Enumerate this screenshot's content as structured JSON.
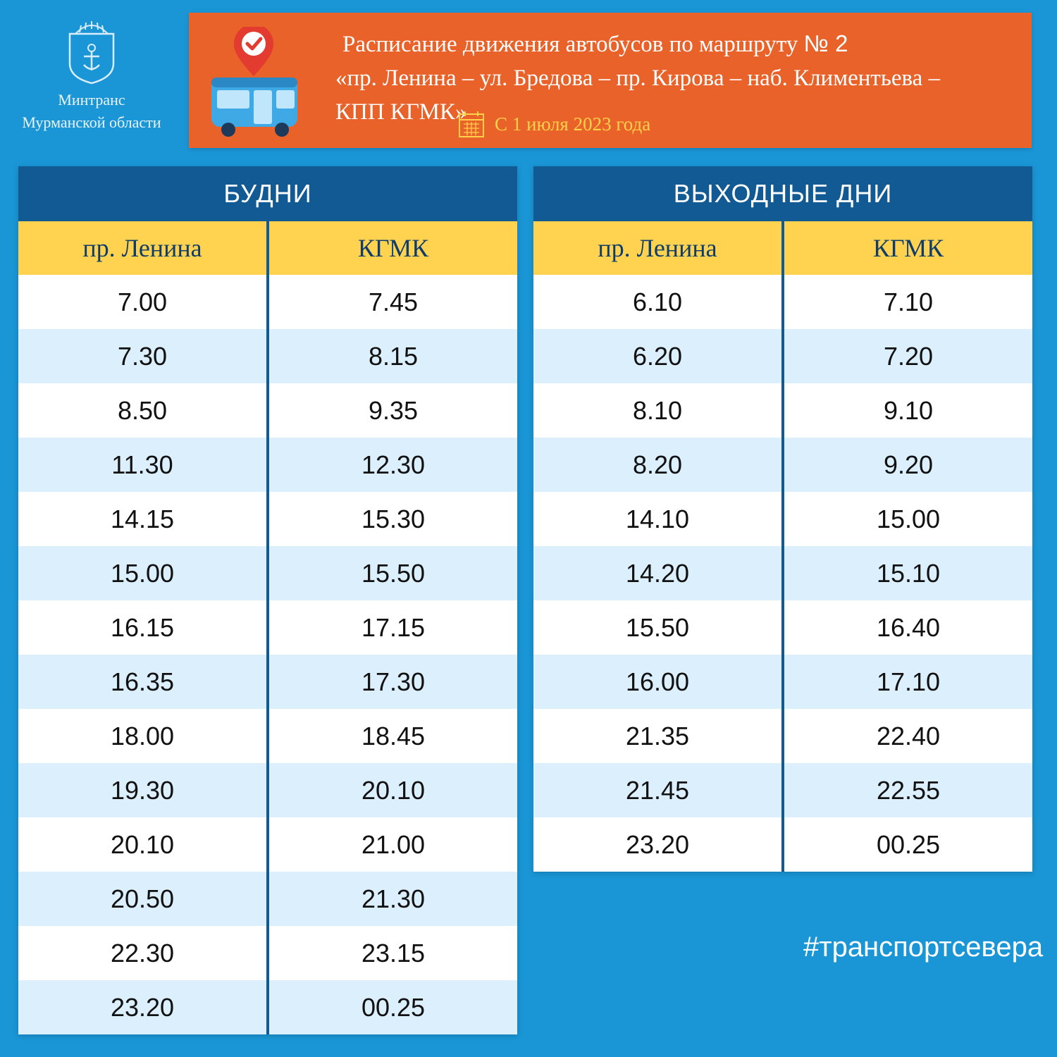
{
  "logo": {
    "line1": "Минтранс",
    "line2": "Мурманской области"
  },
  "header": {
    "title_line1": "Расписание движения автобусов по маршруту",
    "route_number": "№ 2",
    "title_line2": "«пр. Ленина – ул. Бредова – пр. Кирова – наб. Климентьева –",
    "title_line3": "КПП КГМК»",
    "date": "С 1 июля 2023 года",
    "background_color": "#e8622a",
    "date_color": "#ffd24a"
  },
  "weekdays": {
    "title": "БУДНИ",
    "col1": "пр. Ленина",
    "col2": "КГМК",
    "rows": [
      [
        "7.00",
        "7.45"
      ],
      [
        "7.30",
        "8.15"
      ],
      [
        "8.50",
        "9.35"
      ],
      [
        "11.30",
        "12.30"
      ],
      [
        "14.15",
        "15.30"
      ],
      [
        "15.00",
        "15.50"
      ],
      [
        "16.15",
        "17.15"
      ],
      [
        "16.35",
        "17.30"
      ],
      [
        "18.00",
        "18.45"
      ],
      [
        "19.30",
        "20.10"
      ],
      [
        "20.10",
        "21.00"
      ],
      [
        "20.50",
        "21.30"
      ],
      [
        "22.30",
        "23.15"
      ],
      [
        "23.20",
        "00.25"
      ]
    ]
  },
  "weekends": {
    "title": "ВЫХОДНЫЕ ДНИ",
    "col1": "пр. Ленина",
    "col2": "КГМК",
    "rows": [
      [
        "6.10",
        "7.10"
      ],
      [
        "6.20",
        "7.20"
      ],
      [
        "8.10",
        "9.10"
      ],
      [
        "8.20",
        "9.20"
      ],
      [
        "14.10",
        "15.00"
      ],
      [
        "14.20",
        "15.10"
      ],
      [
        "15.50",
        "16.40"
      ],
      [
        "16.00",
        "17.10"
      ],
      [
        "21.35",
        "22.40"
      ],
      [
        "21.45",
        "22.55"
      ],
      [
        "23.20",
        "00.25"
      ]
    ]
  },
  "hashtag": "#транспортсевера",
  "colors": {
    "page_background": "#1a96d6",
    "table_header": "#115a94",
    "column_header": "#ffd350",
    "row_alt": "#dceffd"
  },
  "icons": [
    "crest-icon",
    "bus-location-icon",
    "calendar-icon"
  ]
}
